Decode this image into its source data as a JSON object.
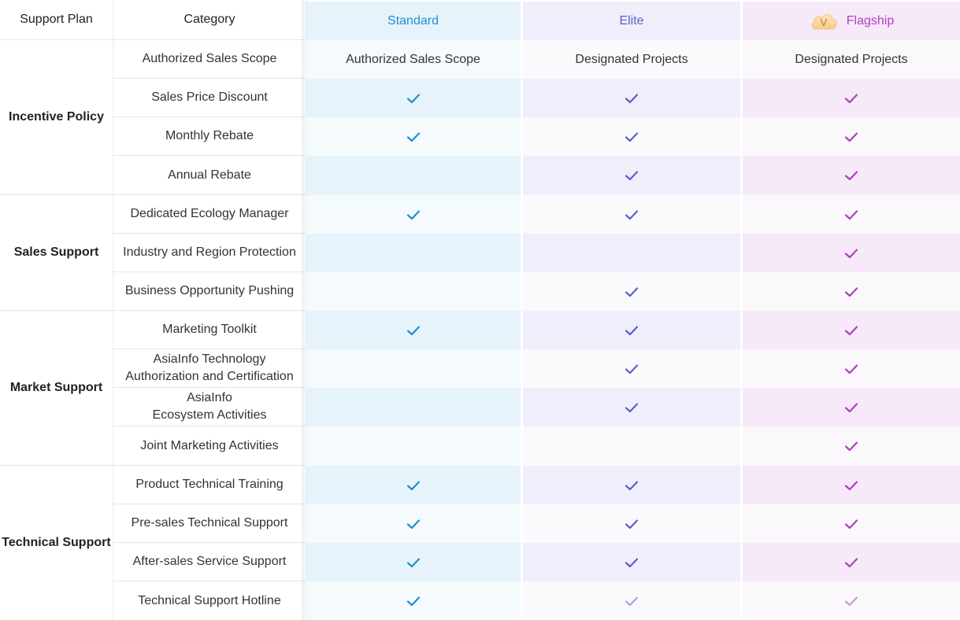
{
  "header": {
    "support_plan": "Support Plan",
    "category": "Category",
    "standard": "Standard",
    "elite": "Elite",
    "flagship": "Flagship",
    "flagship_badge_letter": "V"
  },
  "colors": {
    "standard": "#1f8fd0",
    "elite": "#5b5fc7",
    "flagship": "#b03fbf",
    "standard_bg": "#e7f3fb",
    "elite_bg": "#efeefa",
    "flagship_bg": "#f6e9f8"
  },
  "groups": [
    {
      "name": "Incentive Policy"
    },
    {
      "name": "Sales Support"
    },
    {
      "name": "Market Support"
    },
    {
      "name": "Technical Support"
    }
  ],
  "rows": [
    {
      "category": "Authorized Sales Scope",
      "standard_text": "Authorized Sales Scope",
      "elite_text": "Designated Projects",
      "flagship_text": "Designated Projects"
    },
    {
      "category": "Sales Price Discount",
      "standard": true,
      "elite": true,
      "flagship": true
    },
    {
      "category": "Monthly Rebate",
      "standard": true,
      "elite": true,
      "flagship": true
    },
    {
      "category": "Annual Rebate",
      "standard": false,
      "elite": true,
      "flagship": true
    },
    {
      "category": "Dedicated Ecology Manager",
      "standard": true,
      "elite": true,
      "flagship": true
    },
    {
      "category": "Industry and Region Protection",
      "standard": false,
      "elite": false,
      "flagship": true
    },
    {
      "category": "Business Opportunity Pushing",
      "standard": false,
      "elite": true,
      "flagship": true
    },
    {
      "category": "Marketing Toolkit",
      "standard": true,
      "elite": true,
      "flagship": true
    },
    {
      "category_lines": [
        "AsiaInfo Technology",
        "Authorization and Certification"
      ],
      "standard": false,
      "elite": true,
      "flagship": true
    },
    {
      "category_lines": [
        "AsiaInfo",
        "Ecosystem Activities"
      ],
      "standard": false,
      "elite": true,
      "flagship": true
    },
    {
      "category": "Joint Marketing Activities",
      "standard": false,
      "elite": false,
      "flagship": true
    },
    {
      "category": "Product Technical Training",
      "standard": true,
      "elite": true,
      "flagship": true
    },
    {
      "category": "Pre-sales Technical Support",
      "standard": true,
      "elite": true,
      "flagship": true
    },
    {
      "category": "After-sales Service Support",
      "standard": true,
      "elite": true,
      "flagship": true
    },
    {
      "category": "Technical Support Hotline",
      "standard": true,
      "elite": true,
      "flagship": true
    }
  ]
}
